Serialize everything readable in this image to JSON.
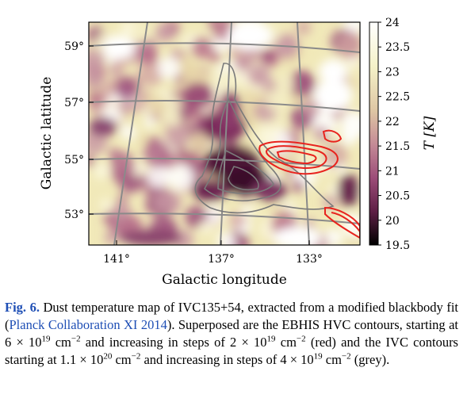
{
  "figure": {
    "xlabel": "Galactic longitude",
    "ylabel": "Galactic latitude",
    "colorbar_label": "T [K]",
    "x_ticks": [
      "141°",
      "137°",
      "133°"
    ],
    "y_ticks": [
      "59°",
      "57°",
      "55°",
      "53°"
    ],
    "colorbar_ticks": [
      "24",
      "23.5",
      "23",
      "22.5",
      "22",
      "21.5",
      "21",
      "20.5",
      "20",
      "19.5"
    ]
  },
  "chart_data": {
    "type": "heatmap",
    "xlabel": "Galactic longitude",
    "ylabel": "Galactic latitude",
    "x_ticks": [
      141,
      137,
      133
    ],
    "y_ticks": [
      59,
      57,
      55,
      53
    ],
    "colorbar": {
      "label": "T [K]",
      "range": [
        19.5,
        24
      ],
      "ticks": [
        24,
        23.5,
        23,
        22.5,
        22,
        21.5,
        21,
        20.5,
        20,
        19.5
      ]
    },
    "colors": {
      "hvc_contours": "#e8231e",
      "ivc_contours": "#7a7a7a",
      "grid": "#8a8a8a"
    },
    "grid": true
  },
  "caption": {
    "label": "Fig. 6.",
    "text_1": " Dust temperature map of IVC135+54, extracted from a modified blackbody fit (",
    "citation": "Planck Collaboration XI 2014",
    "text_2": "). Superposed are the EBHIS HVC contours, starting at 6 × 10",
    "exp_1": "19",
    "text_3": " cm",
    "exp_2": "−2",
    "text_4": " and increasing in steps of 2 × 10",
    "exp_3": "19",
    "text_5": " cm",
    "exp_4": "−2",
    "text_6": " (red) and the IVC contours starting at 1.1 × 10",
    "exp_5": "20",
    "text_7": " cm",
    "exp_6": "−2",
    "text_8": " and increasing in steps of 4 × 10",
    "exp_7": "19",
    "text_9": " cm",
    "exp_8": "−2",
    "text_10": " (grey)."
  }
}
